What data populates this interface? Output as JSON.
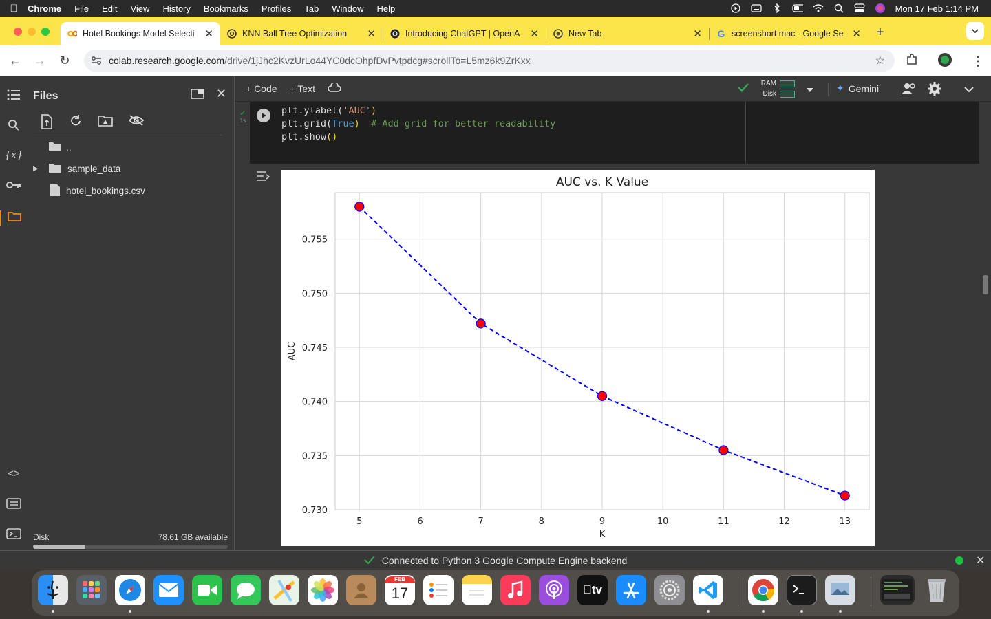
{
  "menubar": {
    "app_name": "Chrome",
    "items": [
      "File",
      "Edit",
      "View",
      "History",
      "Bookmarks",
      "Profiles",
      "Tab",
      "Window",
      "Help"
    ],
    "datetime": "Mon 17 Feb  1:14 PM"
  },
  "tabs": [
    {
      "title": "Hotel Bookings Model Selecti",
      "active": true
    },
    {
      "title": "KNN Ball Tree Optimization",
      "active": false
    },
    {
      "title": "Introducing ChatGPT | OpenA",
      "active": false
    },
    {
      "title": "New Tab",
      "active": false
    },
    {
      "title": "screenshort mac - Google Se",
      "active": false
    }
  ],
  "address": {
    "host": "colab.research.google.com",
    "path": "/drive/1jJhc2KvzUrLo44YC0dcOhpfDvPvtpdcg#scrollTo=L5mz6k9ZrKxx"
  },
  "files_panel": {
    "title": "Files",
    "parent": "..",
    "items": [
      "sample_data",
      "hotel_bookings.csv"
    ],
    "disk_label": "Disk",
    "disk_available": "78.61 GB available",
    "disk_used_fraction": 0.27
  },
  "notebook_toolbar": {
    "code_label": "+ Code",
    "text_label": "+ Text",
    "ram_label": "RAM",
    "disk_label": "Disk",
    "gemini_label": "Gemini"
  },
  "cell": {
    "exec_time": "1s",
    "code_lines": [
      {
        "parts": [
          [
            "plt.ylabel(",
            "#dcdcdc"
          ],
          [
            "'AUC'",
            "#ce9178"
          ],
          [
            ")",
            "#f5d020"
          ]
        ]
      },
      {
        "parts": [
          [
            "plt.grid(",
            "#dcdcdc"
          ],
          [
            "True",
            "#569cd6"
          ],
          [
            ")",
            "#f5d020"
          ],
          [
            "  # Add grid for better readability",
            "#6a9955"
          ]
        ]
      },
      {
        "parts": [
          [
            "plt.show",
            "#dcdcdc"
          ],
          [
            "()",
            "#f5d020"
          ]
        ]
      }
    ]
  },
  "chart_data": {
    "type": "line",
    "title": "AUC vs. K Value",
    "xlabel": "K",
    "ylabel": "AUC",
    "x": [
      5,
      7,
      9,
      11,
      13
    ],
    "series": [
      {
        "values": [
          0.758,
          0.7472,
          0.7405,
          0.7355,
          0.7313
        ],
        "color": "#0000ff",
        "marker_color": "#ff0000",
        "linestyle": "dashed"
      }
    ],
    "xlim": [
      4.6,
      13.4
    ],
    "ylim": [
      0.73,
      0.7593
    ],
    "xticks": [
      5,
      6,
      7,
      8,
      9,
      10,
      11,
      12,
      13
    ],
    "yticks": [
      0.73,
      0.735,
      0.74,
      0.745,
      0.75,
      0.755
    ],
    "ytick_labels": [
      "0.730",
      "0.735",
      "0.740",
      "0.745",
      "0.750",
      "0.755"
    ],
    "grid": true
  },
  "statusbar": {
    "message": "Connected to Python 3 Google Compute Engine backend"
  },
  "dock": {
    "calendar_month": "FEB",
    "calendar_day": "17",
    "tv_label": "tv"
  },
  "colors": {
    "tabbar": "#fbe54a",
    "colab_bg": "#383838",
    "accent_orange": "#f28b1f",
    "success_green": "#34a853"
  }
}
